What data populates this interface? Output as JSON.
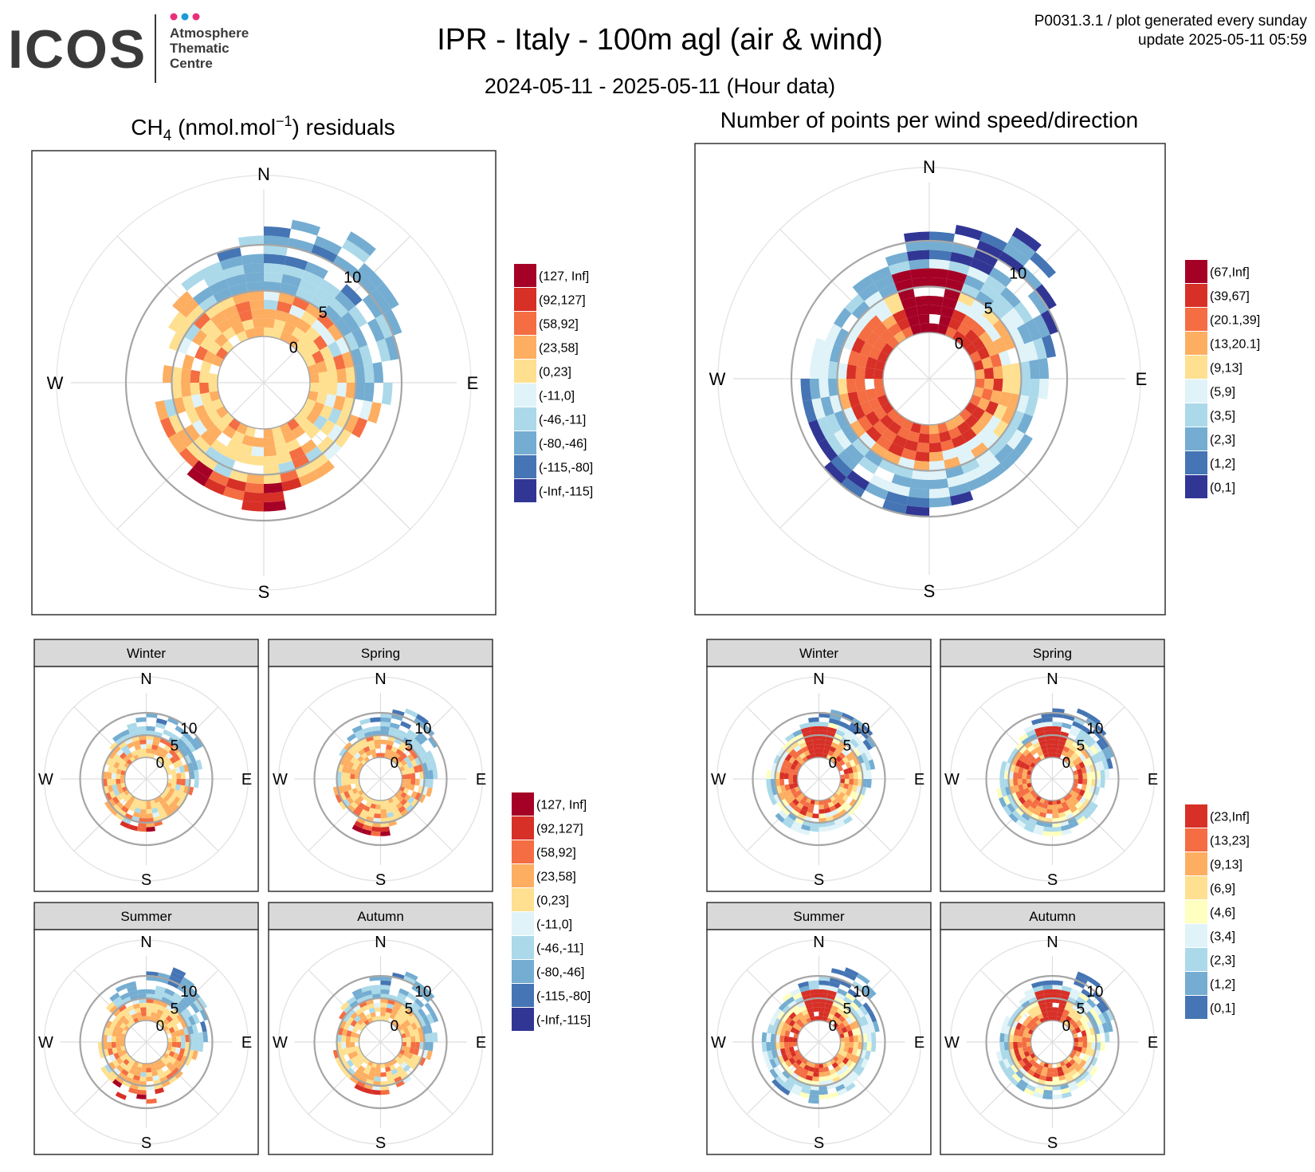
{
  "header": {
    "logo_text": "ICOS",
    "logo_sub": [
      "Atmosphere",
      "Thematic",
      "Centre"
    ],
    "title": "IPR - Italy - 100m agl (air & wind)",
    "subtitle": "2024-05-11 - 2025-05-11 (Hour data)",
    "meta_line1": "P0031.3.1 / plot generated every sunday",
    "meta_line2": "update  2025-05-11 05:59"
  },
  "colors": {
    "logo_dots": [
      "#e8317a",
      "#1e9ad6",
      "#e8317a"
    ],
    "palette10": [
      "#313695",
      "#4575b4",
      "#74add1",
      "#abd9e9",
      "#e0f3f8",
      "#fee090",
      "#fdae61",
      "#f46d43",
      "#d73027",
      "#a50026"
    ],
    "palette9": [
      "#4575b4",
      "#74add1",
      "#abd9e9",
      "#e0f3f8",
      "#ffffbf",
      "#fee090",
      "#fdae61",
      "#f46d43",
      "#d73027"
    ]
  },
  "compass": [
    "N",
    "E",
    "S",
    "W"
  ],
  "ring_labels": [
    "0",
    "5",
    "10"
  ],
  "panels": {
    "ch4_title_prefix": "CH",
    "ch4_title_sub": "4",
    "ch4_title_mid": " (nmol.mol",
    "ch4_title_sup": "−1",
    "ch4_title_suffix": ") residuals",
    "count_title": "Number of points per wind speed/direction",
    "seasons": [
      "Winter",
      "Spring",
      "Summer",
      "Autumn"
    ]
  },
  "legends": {
    "ch4": [
      "(127, Inf]",
      "(92,127]",
      "(58,92]",
      "(23,58]",
      "(0,23]",
      "(-11,0]",
      "(-46,-11]",
      "(-80,-46]",
      "(-115,-80]",
      "(-Inf,-115]"
    ],
    "count": [
      "(67,Inf]",
      "(39,67]",
      "(20.1,39]",
      "(13,20.1]",
      "(9,13]",
      "(5,9]",
      "(3,5]",
      "(2,3]",
      "(1,2]",
      "(0,1]"
    ],
    "count_season": [
      "(23,Inf]",
      "(13,23]",
      "(9,13]",
      "(6,9]",
      "(4,6]",
      "(3,4]",
      "(2,3]",
      "(1,2]",
      "(0,1]"
    ]
  },
  "chart_data": [
    {
      "type": "heatmap",
      "name": "ch4_residuals_all",
      "title": "CH4 (nmol.mol-1) residuals",
      "coordinates": "polar (wind direction, wind speed)",
      "speed_ticks": [
        0,
        5,
        10
      ],
      "direction_labels": [
        "N",
        "E",
        "S",
        "W"
      ],
      "dominant": {
        "NNE_speed_8_14": "(-80,-46]",
        "S_SW_speed_0_7": "(0,23] to (23,58]",
        "SSE_speed_6_9": "(58,92] to (127, Inf]"
      },
      "legend_classes": [
        "(127, Inf]",
        "(92,127]",
        "(58,92]",
        "(23,58]",
        "(0,23]",
        "(-11,0]",
        "(-46,-11]",
        "(-80,-46]",
        "(-115,-80]",
        "(-Inf,-115]"
      ]
    },
    {
      "type": "heatmap",
      "name": "points_per_wind_all",
      "title": "Number of points per wind speed/direction",
      "coordinates": "polar (wind direction, wind speed)",
      "speed_ticks": [
        0,
        5,
        10
      ],
      "direction_labels": [
        "N",
        "E",
        "S",
        "W"
      ],
      "dominant": {
        "N_speed_0_7": "(67,Inf]",
        "SW_speed_0_5": "(39,67]",
        "NE_speed_8_14": "(0,1]"
      },
      "legend_classes": [
        "(67,Inf]",
        "(39,67]",
        "(20.1,39]",
        "(13,20.1]",
        "(9,13]",
        "(5,9]",
        "(3,5]",
        "(2,3]",
        "(1,2]",
        "(0,1]"
      ]
    },
    {
      "type": "heatmap",
      "name": "ch4_residuals_seasonal",
      "facets": [
        "Winter",
        "Spring",
        "Summer",
        "Autumn"
      ],
      "speed_ticks": [
        0,
        5,
        10
      ],
      "legend_classes": [
        "(127, Inf]",
        "(92,127]",
        "(58,92]",
        "(23,58]",
        "(0,23]",
        "(-11,0]",
        "(-46,-11]",
        "(-80,-46]",
        "(-115,-80]",
        "(-Inf,-115]"
      ]
    },
    {
      "type": "heatmap",
      "name": "points_per_wind_seasonal",
      "facets": [
        "Winter",
        "Spring",
        "Summer",
        "Autumn"
      ],
      "speed_ticks": [
        0,
        5,
        10
      ],
      "legend_classes": [
        "(23,Inf]",
        "(13,23]",
        "(9,13]",
        "(6,9]",
        "(4,6]",
        "(3,4]",
        "(2,3]",
        "(1,2]",
        "(0,1]"
      ]
    }
  ]
}
